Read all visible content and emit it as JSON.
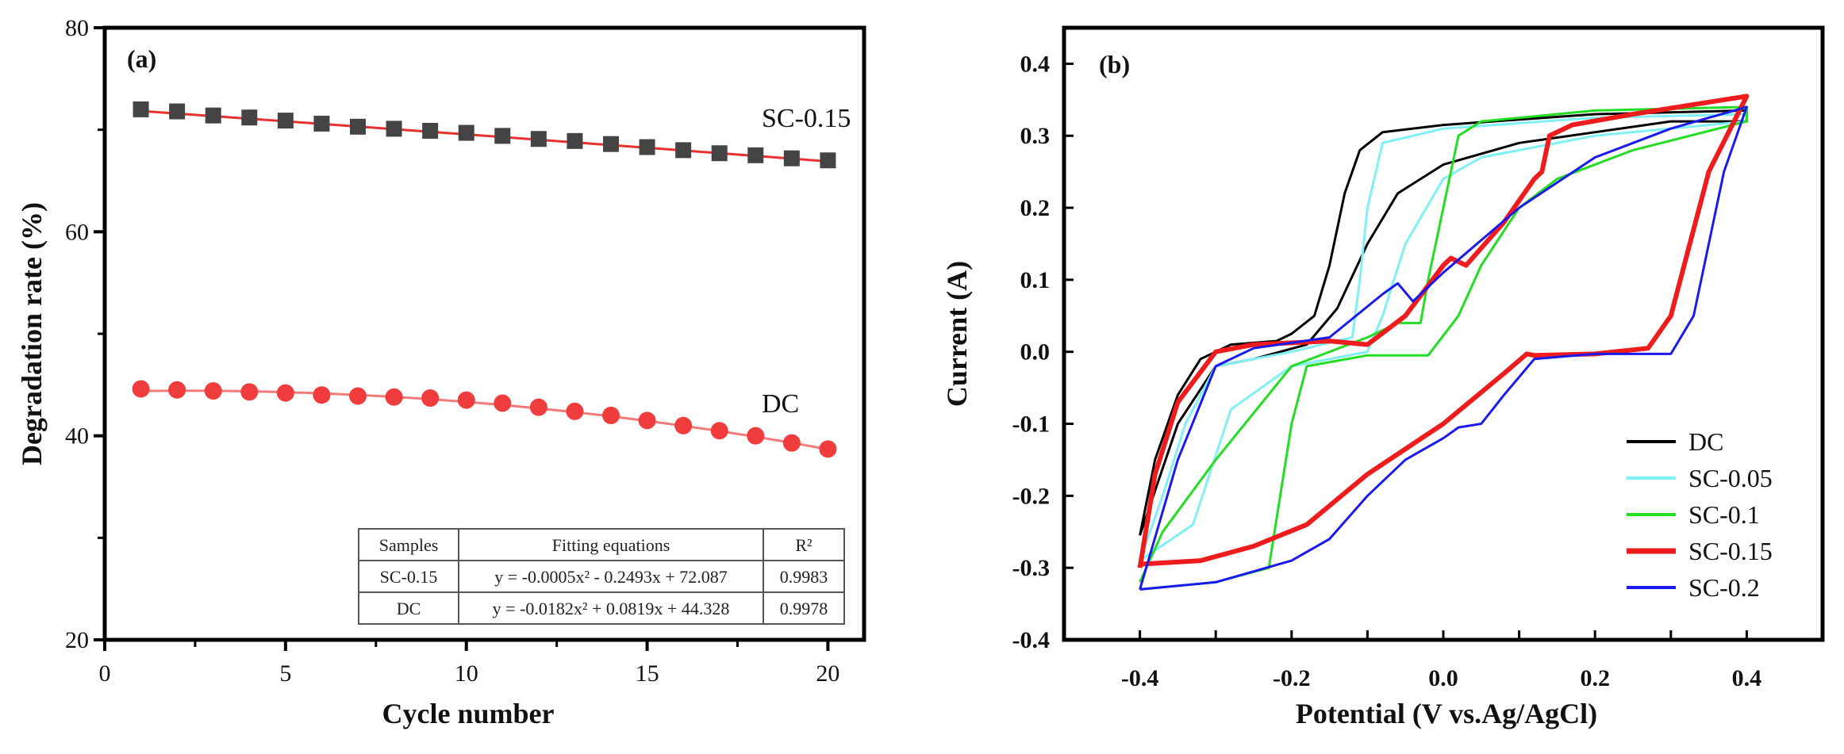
{
  "chart_data": [
    {
      "panel_label": "(a)",
      "type": "scatter",
      "xlabel": "Cycle number",
      "ylabel": "Degradation rate (%)",
      "xlim": [
        0,
        21
      ],
      "ylim": [
        20,
        80
      ],
      "xticks": [
        "0",
        "5",
        "10",
        "15",
        "20"
      ],
      "yticks": [
        "20",
        "40",
        "60",
        "80"
      ],
      "x": [
        1,
        2,
        3,
        4,
        5,
        6,
        7,
        8,
        9,
        10,
        11,
        12,
        13,
        14,
        15,
        16,
        17,
        18,
        19,
        20
      ],
      "series": [
        {
          "name": "SC-0.15",
          "marker": "square",
          "color": "#444444",
          "fit_color": "#e83030",
          "values": [
            72.0,
            71.8,
            71.4,
            71.2,
            70.9,
            70.6,
            70.3,
            70.1,
            69.9,
            69.7,
            69.4,
            69.1,
            68.9,
            68.6,
            68.3,
            68.0,
            67.7,
            67.5,
            67.2,
            67.0
          ],
          "fit": [
            -0.0005,
            -0.2493,
            72.087
          ]
        },
        {
          "name": "DC",
          "marker": "circle",
          "color": "#f03c3c",
          "fit_color": "#f27a7a",
          "values": [
            44.6,
            44.5,
            44.4,
            44.3,
            44.2,
            44.0,
            43.9,
            43.8,
            43.7,
            43.5,
            43.2,
            42.8,
            42.4,
            42.0,
            41.5,
            41.0,
            40.5,
            40.0,
            39.3,
            38.7
          ],
          "fit": [
            -0.0182,
            0.0819,
            44.328
          ]
        }
      ],
      "annotations": [
        "SC-0.15",
        "DC"
      ],
      "table": {
        "headers": [
          "Samples",
          "Fitting equations",
          "R²"
        ],
        "rows": [
          [
            "SC-0.15",
            "y = -0.0005x² - 0.2493x + 72.087",
            "0.9983"
          ],
          [
            "DC",
            "y = -0.0182x² + 0.0819x + 44.328",
            "0.9978"
          ]
        ]
      }
    },
    {
      "panel_label": "(b)",
      "type": "line",
      "xlabel": "Potential (V vs.Ag/AgCl)",
      "ylabel": "Current (A)",
      "xlim": [
        -0.5,
        0.5
      ],
      "ylim": [
        -0.4,
        0.45
      ],
      "xticks": [
        "-0.4",
        "-0.2",
        "0.0",
        "0.2",
        "0.4"
      ],
      "yticks": [
        "-0.4",
        "-0.3",
        "-0.2",
        "-0.1",
        "0.0",
        "0.1",
        "0.2",
        "0.3",
        "0.4"
      ],
      "legend_position": "bottom-right",
      "series": [
        {
          "name": "DC",
          "color": "#000000",
          "width": 3,
          "points": [
            [
              -0.4,
              -0.255
            ],
            [
              -0.38,
              -0.15
            ],
            [
              -0.35,
              -0.06
            ],
            [
              -0.32,
              -0.01
            ],
            [
              -0.28,
              0.01
            ],
            [
              -0.22,
              0.015
            ],
            [
              -0.2,
              0.025
            ],
            [
              -0.17,
              0.05
            ],
            [
              -0.15,
              0.12
            ],
            [
              -0.13,
              0.22
            ],
            [
              -0.11,
              0.28
            ],
            [
              -0.08,
              0.305
            ],
            [
              0.0,
              0.315
            ],
            [
              0.2,
              0.33
            ],
            [
              0.4,
              0.335
            ],
            [
              0.4,
              0.32
            ],
            [
              0.3,
              0.32
            ],
            [
              0.1,
              0.29
            ],
            [
              0.0,
              0.26
            ],
            [
              -0.06,
              0.22
            ],
            [
              -0.1,
              0.15
            ],
            [
              -0.14,
              0.06
            ],
            [
              -0.18,
              0.01
            ],
            [
              -0.25,
              -0.01
            ],
            [
              -0.3,
              -0.02
            ],
            [
              -0.35,
              -0.1
            ],
            [
              -0.4,
              -0.255
            ]
          ]
        },
        {
          "name": "SC-0.05",
          "color": "#7ff0f5",
          "width": 3,
          "points": [
            [
              -0.4,
              -0.29
            ],
            [
              -0.37,
              -0.2
            ],
            [
              -0.34,
              -0.1
            ],
            [
              -0.3,
              -0.02
            ],
            [
              -0.2,
              0.0
            ],
            [
              -0.12,
              0.02
            ],
            [
              -0.11,
              0.1
            ],
            [
              -0.1,
              0.2
            ],
            [
              -0.08,
              0.29
            ],
            [
              0.0,
              0.31
            ],
            [
              0.2,
              0.325
            ],
            [
              0.4,
              0.33
            ],
            [
              0.4,
              0.32
            ],
            [
              0.2,
              0.3
            ],
            [
              0.05,
              0.27
            ],
            [
              0.0,
              0.24
            ],
            [
              -0.05,
              0.15
            ],
            [
              -0.08,
              0.05
            ],
            [
              -0.1,
              0.0
            ],
            [
              -0.2,
              -0.02
            ],
            [
              -0.28,
              -0.08
            ],
            [
              -0.33,
              -0.24
            ],
            [
              -0.4,
              -0.29
            ]
          ]
        },
        {
          "name": "SC-0.1",
          "color": "#22dd22",
          "width": 3,
          "points": [
            [
              -0.4,
              -0.33
            ],
            [
              -0.3,
              -0.32
            ],
            [
              -0.23,
              -0.3
            ],
            [
              -0.2,
              -0.1
            ],
            [
              -0.18,
              -0.02
            ],
            [
              -0.1,
              -0.005
            ],
            [
              -0.02,
              -0.005
            ],
            [
              0.02,
              0.05
            ],
            [
              0.05,
              0.12
            ],
            [
              0.1,
              0.2
            ],
            [
              0.15,
              0.24
            ],
            [
              0.25,
              0.28
            ],
            [
              0.4,
              0.32
            ],
            [
              0.4,
              0.34
            ],
            [
              0.2,
              0.335
            ],
            [
              0.05,
              0.32
            ],
            [
              0.02,
              0.3
            ],
            [
              0.0,
              0.2
            ],
            [
              -0.02,
              0.1
            ],
            [
              -0.03,
              0.04
            ],
            [
              -0.06,
              0.04
            ],
            [
              -0.1,
              0.02
            ],
            [
              -0.2,
              -0.02
            ],
            [
              -0.3,
              -0.15
            ],
            [
              -0.37,
              -0.25
            ],
            [
              -0.4,
              -0.32
            ]
          ]
        },
        {
          "name": "SC-0.15",
          "color": "#ee1c1c",
          "width": 6,
          "points": [
            [
              -0.4,
              -0.3
            ],
            [
              -0.38,
              -0.17
            ],
            [
              -0.35,
              -0.07
            ],
            [
              -0.3,
              0.0
            ],
            [
              -0.25,
              0.01
            ],
            [
              -0.15,
              0.015
            ],
            [
              -0.1,
              0.01
            ],
            [
              -0.05,
              0.05
            ],
            [
              0.0,
              0.12
            ],
            [
              0.01,
              0.13
            ],
            [
              0.03,
              0.12
            ],
            [
              0.08,
              0.18
            ],
            [
              0.12,
              0.24
            ],
            [
              0.13,
              0.25
            ],
            [
              0.14,
              0.3
            ],
            [
              0.17,
              0.315
            ],
            [
              0.25,
              0.33
            ],
            [
              0.4,
              0.355
            ],
            [
              0.35,
              0.25
            ],
            [
              0.3,
              0.05
            ],
            [
              0.27,
              0.005
            ],
            [
              0.2,
              -0.003
            ],
            [
              0.12,
              -0.005
            ],
            [
              0.11,
              -0.003
            ],
            [
              0.08,
              -0.03
            ],
            [
              0.0,
              -0.1
            ],
            [
              -0.1,
              -0.17
            ],
            [
              -0.18,
              -0.24
            ],
            [
              -0.25,
              -0.27
            ],
            [
              -0.32,
              -0.29
            ],
            [
              -0.4,
              -0.295
            ]
          ]
        },
        {
          "name": "SC-0.2",
          "color": "#1a1aee",
          "width": 3,
          "points": [
            [
              -0.4,
              -0.33
            ],
            [
              -0.3,
              -0.32
            ],
            [
              -0.2,
              -0.29
            ],
            [
              -0.15,
              -0.26
            ],
            [
              -0.1,
              -0.2
            ],
            [
              -0.05,
              -0.15
            ],
            [
              0.0,
              -0.12
            ],
            [
              0.02,
              -0.105
            ],
            [
              0.05,
              -0.1
            ],
            [
              0.08,
              -0.06
            ],
            [
              0.12,
              -0.01
            ],
            [
              0.2,
              -0.003
            ],
            [
              0.3,
              -0.003
            ],
            [
              0.33,
              0.05
            ],
            [
              0.37,
              0.25
            ],
            [
              0.4,
              0.34
            ],
            [
              0.3,
              0.31
            ],
            [
              0.2,
              0.27
            ],
            [
              0.1,
              0.2
            ],
            [
              0.0,
              0.11
            ],
            [
              -0.04,
              0.07
            ],
            [
              -0.06,
              0.095
            ],
            [
              -0.08,
              0.08
            ],
            [
              -0.15,
              0.02
            ],
            [
              -0.25,
              0.005
            ],
            [
              -0.3,
              -0.02
            ],
            [
              -0.35,
              -0.15
            ],
            [
              -0.4,
              -0.33
            ]
          ]
        }
      ]
    }
  ]
}
